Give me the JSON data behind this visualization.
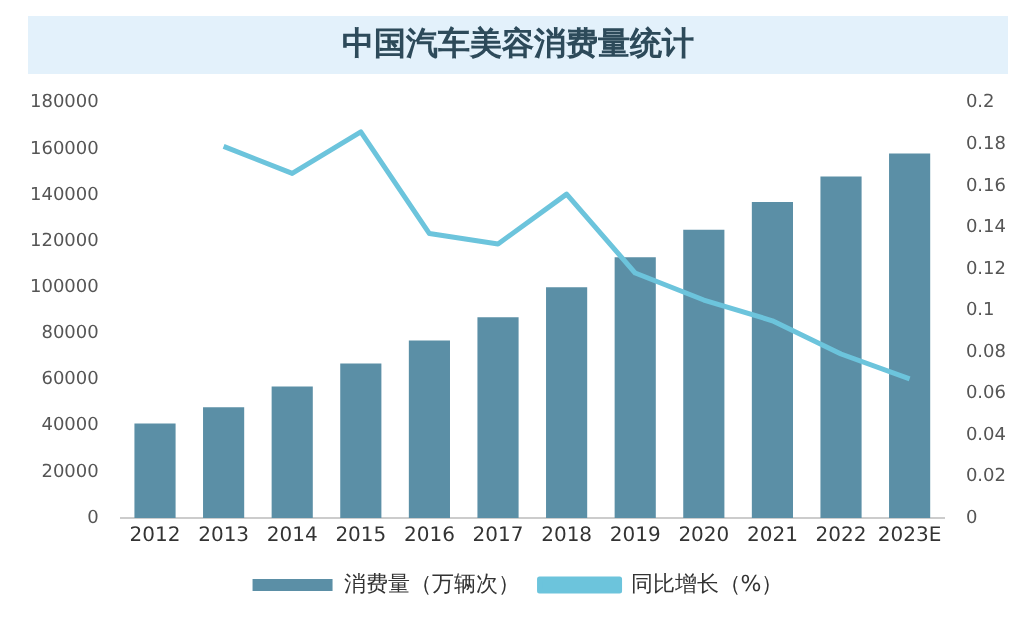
{
  "chart_data": {
    "type": "bar",
    "title": "中国汽车美容消费量统计",
    "categories": [
      "2012",
      "2013",
      "2014",
      "2015",
      "2016",
      "2017",
      "2018",
      "2019",
      "2020",
      "2021",
      "2022",
      "2023E"
    ],
    "series": [
      {
        "name": "消费量（万辆次）",
        "color": "#5b8fa6",
        "values": [
          41000,
          48000,
          57000,
          67000,
          77000,
          87000,
          100000,
          113000,
          125000,
          137000,
          148000,
          158000
        ]
      },
      {
        "name": "同比增长（%）",
        "type": "line",
        "axis": "y2",
        "color": "#6cc4dc",
        "values": [
          null,
          0.179,
          0.166,
          0.186,
          0.137,
          0.132,
          0.156,
          0.118,
          0.105,
          0.095,
          0.079,
          0.067
        ]
      }
    ],
    "ylim": [
      0,
      180000
    ],
    "yticks": [
      0,
      20000,
      40000,
      60000,
      80000,
      100000,
      120000,
      140000,
      160000,
      180000
    ],
    "y2lim": [
      0,
      0.2
    ],
    "y2ticks": [
      0,
      0.02,
      0.04,
      0.06,
      0.08,
      0.1,
      0.12,
      0.14,
      0.16,
      0.18,
      0.2
    ],
    "grid": false,
    "legend": "bottom",
    "marker": "none"
  }
}
